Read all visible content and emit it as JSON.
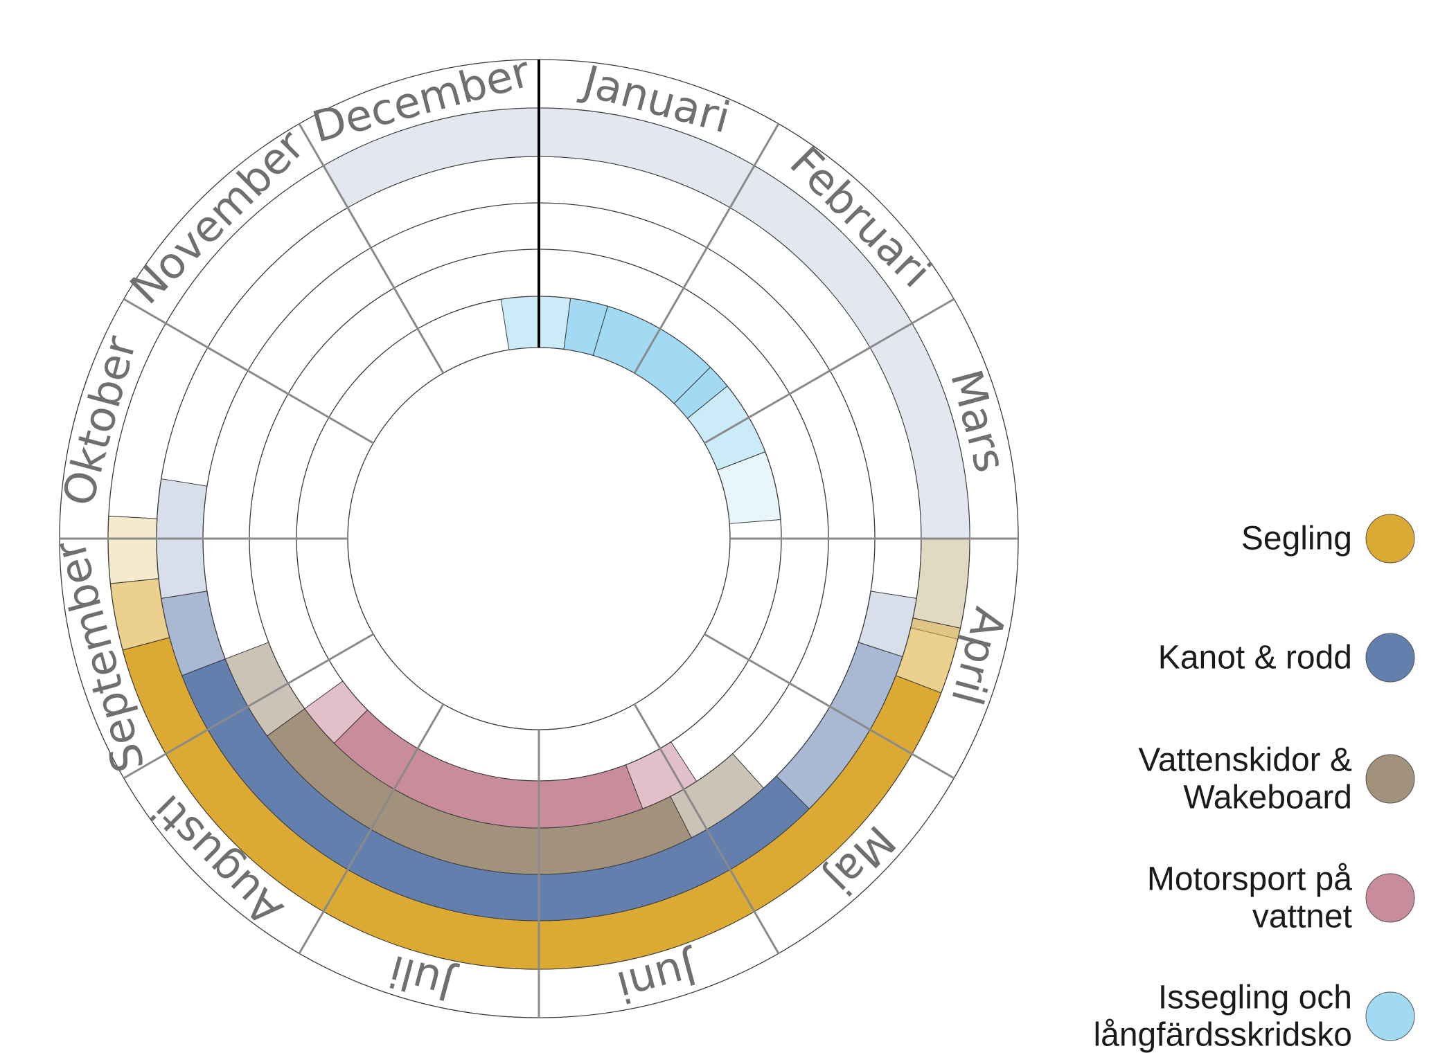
{
  "chart_data": {
    "type": "radial-calendar",
    "months": [
      "Januari",
      "Februari",
      "Mars",
      "April",
      "Maj",
      "Juni",
      "Juli",
      "Augusti",
      "September",
      "Oktober",
      "November",
      "December"
    ],
    "series": [
      {
        "name": "Segling",
        "color": "#dcaa32",
        "segments": [
          {
            "start": 3.0,
            "end": 3.4,
            "intensity": "low"
          },
          {
            "start": 3.4,
            "end": 3.7,
            "intensity": "mid"
          },
          {
            "start": 3.7,
            "end": 4.0,
            "intensity": "high"
          },
          {
            "start": 4.0,
            "end": 8.0,
            "intensity": "high"
          },
          {
            "start": 8.0,
            "end": 8.5,
            "intensity": "high"
          },
          {
            "start": 8.5,
            "end": 8.8,
            "intensity": "mid"
          },
          {
            "start": 8.8,
            "end": 9.1,
            "intensity": "low"
          }
        ]
      },
      {
        "name": "Kanot & rodd",
        "color": "#637fae",
        "segments": [
          {
            "start": 3.3,
            "end": 3.6,
            "intensity": "low"
          },
          {
            "start": 3.6,
            "end": 4.5,
            "intensity": "mid"
          },
          {
            "start": 4.5,
            "end": 8.3,
            "intensity": "high"
          },
          {
            "start": 8.3,
            "end": 8.7,
            "intensity": "mid"
          },
          {
            "start": 8.7,
            "end": 9.3,
            "intensity": "low"
          }
        ]
      },
      {
        "name": "Vattenskidor & Wakeboard",
        "color": "#a3927b",
        "segments": [
          {
            "start": 4.6,
            "end": 5.1,
            "intensity": "mid"
          },
          {
            "start": 5.1,
            "end": 7.8,
            "intensity": "high"
          },
          {
            "start": 7.8,
            "end": 8.3,
            "intensity": "mid"
          }
        ]
      },
      {
        "name": "Motorsport på vattnet",
        "color": "#c98c9d",
        "segments": [
          {
            "start": 4.9,
            "end": 5.3,
            "intensity": "mid"
          },
          {
            "start": 5.3,
            "end": 7.5,
            "intensity": "high"
          },
          {
            "start": 7.5,
            "end": 7.8,
            "intensity": "mid"
          }
        ]
      },
      {
        "name": "Issegling och långfärdsskridsko",
        "color": "#a2daf4",
        "segments": [
          {
            "start": -0.3,
            "end": 0.25,
            "intensity": "mid"
          },
          {
            "start": 0.25,
            "end": 0.55,
            "intensity": "high"
          },
          {
            "start": 0.55,
            "end": 1.5,
            "intensity": "high"
          },
          {
            "start": 1.5,
            "end": 1.7,
            "intensity": "high"
          },
          {
            "start": 1.7,
            "end": 2.3,
            "intensity": "mid"
          },
          {
            "start": 2.3,
            "end": 2.85,
            "intensity": "low"
          }
        ]
      }
    ],
    "background_ring": {
      "color": "#e3e8f0",
      "segments": [
        {
          "start": -1.0,
          "end": 3.45
        }
      ]
    },
    "legend": [
      "Segling",
      "Kanot & rodd",
      "Vattenskidor & Wakeboard",
      "Motorsport på vattnet",
      "Issegling och långfärdsskridsko"
    ],
    "legend_lines": [
      [
        "Segling"
      ],
      [
        "Kanot & rodd"
      ],
      [
        "Vattenskidor &",
        "Wakeboard"
      ],
      [
        "Motorsport på",
        "vattnet"
      ],
      [
        "Issegling och",
        "långfärdsskridsko"
      ]
    ],
    "legend_placement": "right"
  }
}
